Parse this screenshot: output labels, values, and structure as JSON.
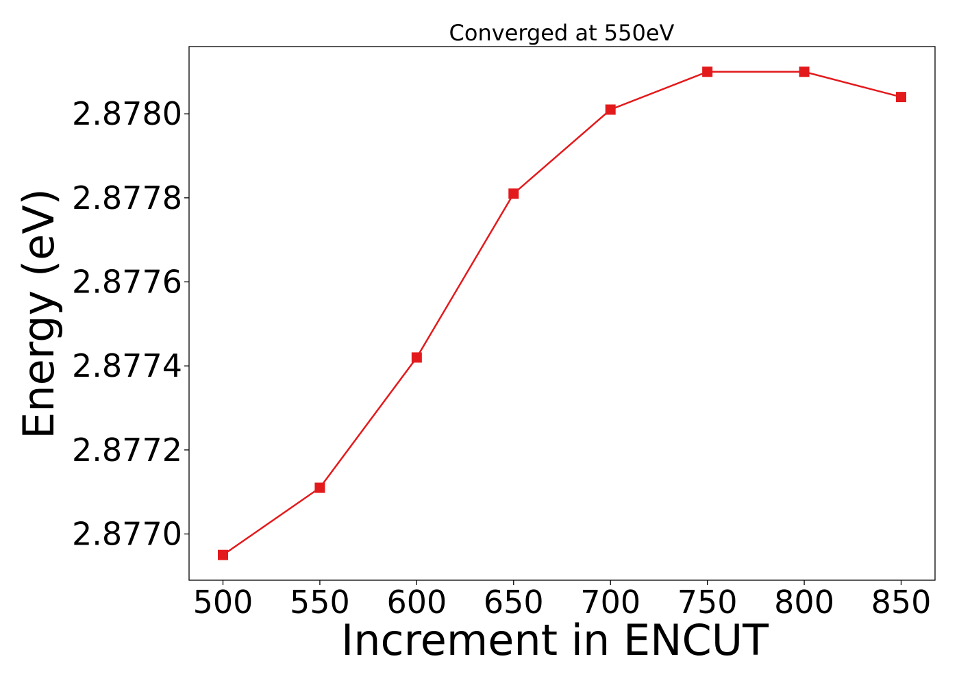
{
  "chart_data": {
    "type": "line",
    "title": "Converged at 550eV",
    "xlabel": "Increment in ENCUT",
    "ylabel": "Energy (eV)",
    "x": [
      500,
      550,
      600,
      650,
      700,
      750,
      800,
      850
    ],
    "series": [
      {
        "values": [
          2.87695,
          2.87711,
          2.87742,
          2.87781,
          2.87801,
          2.8781,
          2.8781,
          2.87804
        ],
        "color": "#e31a1c",
        "marker": "square"
      }
    ],
    "xticks": [
      500,
      550,
      600,
      650,
      700,
      750,
      800,
      850
    ],
    "xtick_labels": [
      "500",
      "550",
      "600",
      "650",
      "700",
      "750",
      "800",
      "850"
    ],
    "yticks": [
      2.877,
      2.8772,
      2.8774,
      2.8776,
      2.8778,
      2.878
    ],
    "ytick_labels": [
      "2.8770",
      "2.8772",
      "2.8774",
      "2.8776",
      "2.8778",
      "2.8780"
    ],
    "xlim": [
      482.5,
      867.5
    ],
    "ylim": [
      2.87689,
      2.87816
    ],
    "grid": false,
    "legend": false
  }
}
